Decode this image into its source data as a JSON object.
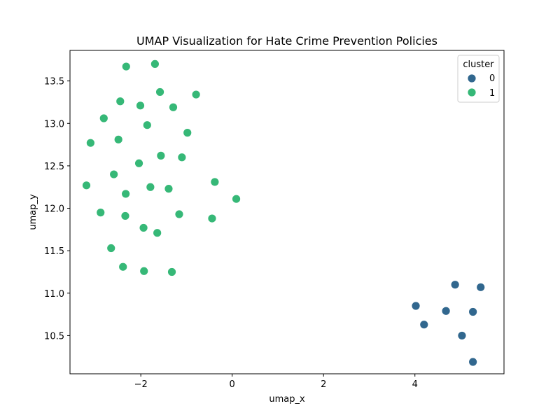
{
  "chart_data": {
    "type": "scatter",
    "title": "UMAP Visualization for Hate Crime Prevention Policies",
    "xlabel": "umap_x",
    "ylabel": "umap_y",
    "xlim": [
      -3.55,
      5.95
    ],
    "ylim": [
      10.05,
      13.86
    ],
    "xticks": [
      -2,
      0,
      2,
      4
    ],
    "xtick_labels": [
      "−2",
      "0",
      "2",
      "4"
    ],
    "yticks": [
      10.5,
      11.0,
      11.5,
      12.0,
      12.5,
      13.0,
      13.5
    ],
    "ytick_labels": [
      "10.5",
      "11.0",
      "11.5",
      "12.0",
      "12.5",
      "13.0",
      "13.5"
    ],
    "grid": false,
    "legend": {
      "title": "cluster",
      "placement": "top-right",
      "entries": [
        {
          "label": "0",
          "color": "#31678e"
        },
        {
          "label": "1",
          "color": "#36b877"
        }
      ]
    },
    "series": [
      {
        "name": "0",
        "color": "#31678e",
        "points": [
          {
            "x": 4.02,
            "y": 10.85
          },
          {
            "x": 4.2,
            "y": 10.63
          },
          {
            "x": 4.68,
            "y": 10.79
          },
          {
            "x": 4.88,
            "y": 11.1
          },
          {
            "x": 5.03,
            "y": 10.5
          },
          {
            "x": 5.27,
            "y": 10.78
          },
          {
            "x": 5.27,
            "y": 10.19
          },
          {
            "x": 5.44,
            "y": 11.07
          }
        ]
      },
      {
        "name": "1",
        "color": "#36b877",
        "points": [
          {
            "x": -2.32,
            "y": 13.67
          },
          {
            "x": -1.69,
            "y": 13.7
          },
          {
            "x": -1.58,
            "y": 13.37
          },
          {
            "x": -0.79,
            "y": 13.34
          },
          {
            "x": -2.45,
            "y": 13.26
          },
          {
            "x": -2.01,
            "y": 13.21
          },
          {
            "x": -1.29,
            "y": 13.19
          },
          {
            "x": -2.81,
            "y": 13.06
          },
          {
            "x": -1.86,
            "y": 12.98
          },
          {
            "x": -0.98,
            "y": 12.89
          },
          {
            "x": -3.1,
            "y": 12.77
          },
          {
            "x": -2.49,
            "y": 12.81
          },
          {
            "x": -1.56,
            "y": 12.62
          },
          {
            "x": -1.1,
            "y": 12.6
          },
          {
            "x": -2.04,
            "y": 12.53
          },
          {
            "x": -2.59,
            "y": 12.4
          },
          {
            "x": -0.38,
            "y": 12.31
          },
          {
            "x": -3.19,
            "y": 12.27
          },
          {
            "x": -1.79,
            "y": 12.25
          },
          {
            "x": -1.39,
            "y": 12.23
          },
          {
            "x": -2.33,
            "y": 12.17
          },
          {
            "x": 0.09,
            "y": 12.11
          },
          {
            "x": -2.88,
            "y": 11.95
          },
          {
            "x": -1.16,
            "y": 11.93
          },
          {
            "x": -2.34,
            "y": 11.91
          },
          {
            "x": -0.44,
            "y": 11.88
          },
          {
            "x": -1.94,
            "y": 11.77
          },
          {
            "x": -1.64,
            "y": 11.71
          },
          {
            "x": -2.65,
            "y": 11.53
          },
          {
            "x": -2.39,
            "y": 11.31
          },
          {
            "x": -1.93,
            "y": 11.26
          },
          {
            "x": -1.32,
            "y": 11.25
          }
        ]
      }
    ]
  }
}
